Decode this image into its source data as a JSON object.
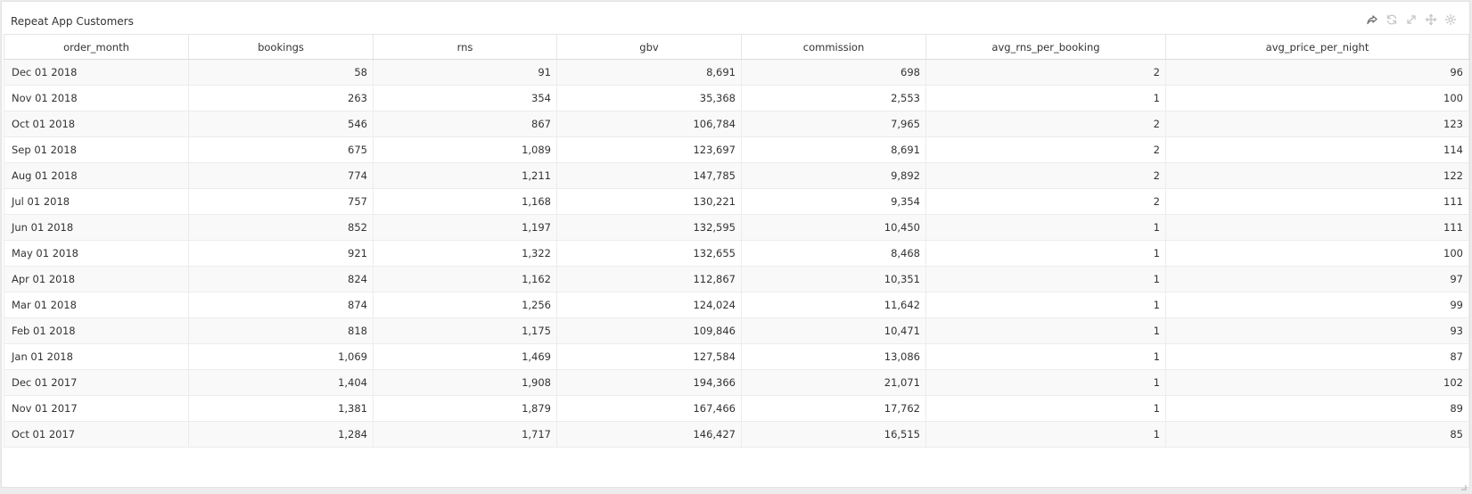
{
  "panel": {
    "title": "Repeat App Customers",
    "tools": [
      "share-icon",
      "refresh-icon",
      "expand-icon",
      "move-icon",
      "settings-icon"
    ]
  },
  "table": {
    "columns": [
      "order_month",
      "bookings",
      "rns",
      "gbv",
      "commission",
      "avg_rns_per_booking",
      "avg_price_per_night"
    ],
    "rows": [
      [
        "Dec 01 2018",
        "58",
        "91",
        "8,691",
        "698",
        "2",
        "96"
      ],
      [
        "Nov 01 2018",
        "263",
        "354",
        "35,368",
        "2,553",
        "1",
        "100"
      ],
      [
        "Oct 01 2018",
        "546",
        "867",
        "106,784",
        "7,965",
        "2",
        "123"
      ],
      [
        "Sep 01 2018",
        "675",
        "1,089",
        "123,697",
        "8,691",
        "2",
        "114"
      ],
      [
        "Aug 01 2018",
        "774",
        "1,211",
        "147,785",
        "9,892",
        "2",
        "122"
      ],
      [
        "Jul 01 2018",
        "757",
        "1,168",
        "130,221",
        "9,354",
        "2",
        "111"
      ],
      [
        "Jun 01 2018",
        "852",
        "1,197",
        "132,595",
        "10,450",
        "1",
        "111"
      ],
      [
        "May 01 2018",
        "921",
        "1,322",
        "132,655",
        "8,468",
        "1",
        "100"
      ],
      [
        "Apr 01 2018",
        "824",
        "1,162",
        "112,867",
        "10,351",
        "1",
        "97"
      ],
      [
        "Mar 01 2018",
        "874",
        "1,256",
        "124,024",
        "11,642",
        "1",
        "99"
      ],
      [
        "Feb 01 2018",
        "818",
        "1,175",
        "109,846",
        "10,471",
        "1",
        "93"
      ],
      [
        "Jan 01 2018",
        "1,069",
        "1,469",
        "127,584",
        "13,086",
        "1",
        "87"
      ],
      [
        "Dec 01 2017",
        "1,404",
        "1,908",
        "194,366",
        "21,071",
        "1",
        "102"
      ],
      [
        "Nov 01 2017",
        "1,381",
        "1,879",
        "167,466",
        "17,762",
        "1",
        "89"
      ],
      [
        "Oct 01 2017",
        "1,284",
        "1,717",
        "146,427",
        "16,515",
        "1",
        "85"
      ]
    ]
  }
}
